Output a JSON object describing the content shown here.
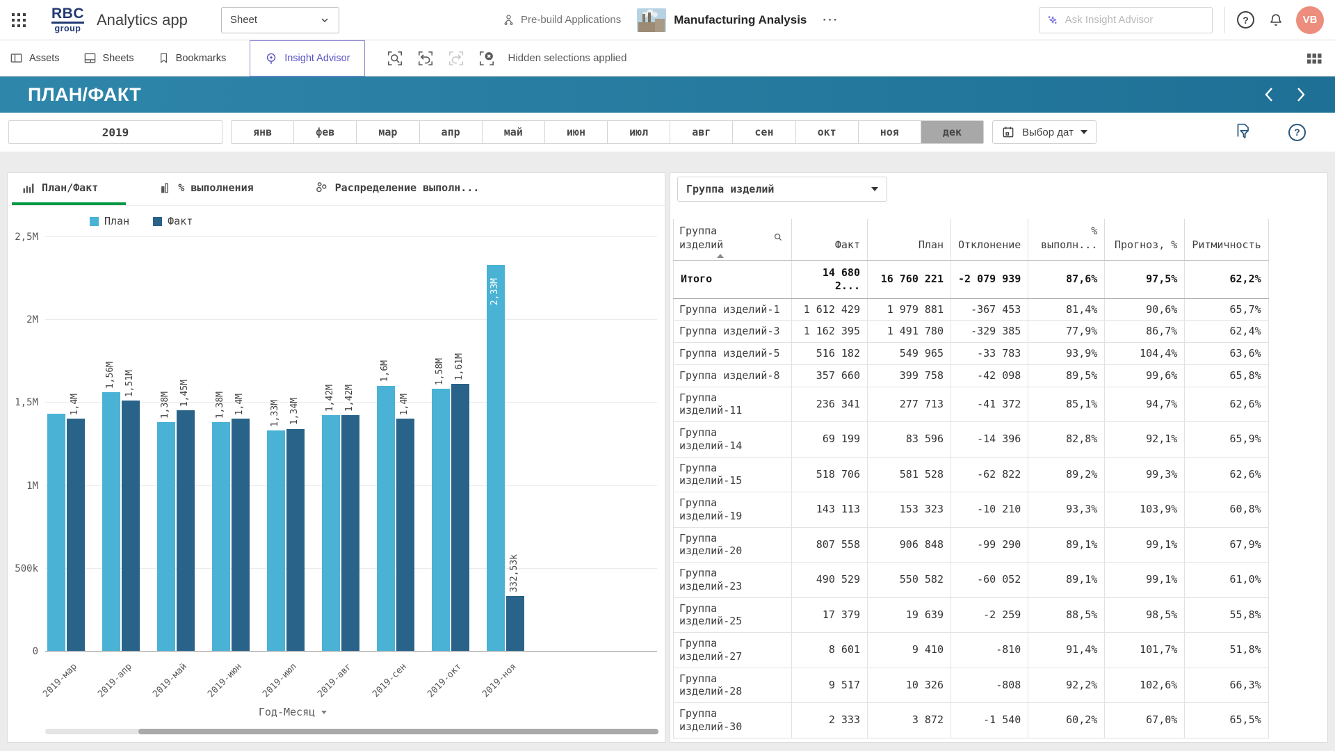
{
  "colors": {
    "plan": "#4ab2d4",
    "fact": "#2a6389",
    "negative": "#e8293d",
    "positive": "#0ea55c",
    "forecast": "#4f52c8",
    "accent_green": "#009845",
    "header_gradient_start": "#2e86aa",
    "header_gradient_end": "#1f7096",
    "avatar_bg": "#ec8d7d"
  },
  "topbar": {
    "logo_line1": "RBC",
    "logo_line2": "group",
    "app_title": "Analytics app",
    "sheet_select": "Sheet",
    "prebuild_label": "Pre-build Applications",
    "app_name": "Manufacturing Analysis",
    "ellipsis": "···",
    "search_placeholder": "Ask Insight Advisor",
    "avatar_initials": "VB"
  },
  "toolbar": {
    "assets": "Assets",
    "sheets": "Sheets",
    "bookmarks": "Bookmarks",
    "insight_advisor": "Insight Advisor",
    "hidden_selections": "Hidden selections applied"
  },
  "sheet_header": {
    "title": "ПЛАН/ФАКТ"
  },
  "filters": {
    "year": "2019",
    "months": [
      "янв",
      "фев",
      "мар",
      "апр",
      "май",
      "июн",
      "июл",
      "авг",
      "сен",
      "окт",
      "ноя",
      "дек"
    ],
    "selected_month": "дек",
    "date_picker": "Выбор дат"
  },
  "chart_card": {
    "tabs": [
      {
        "label": "План/Факт",
        "active": true
      },
      {
        "label": "% выполнения",
        "active": false
      },
      {
        "label": "Распределение выполн...",
        "active": false
      }
    ],
    "axis_title": "Год-Месяц"
  },
  "chart_data": {
    "type": "bar",
    "title": "План/Факт",
    "unit": "millions",
    "categories": [
      "2019-мар",
      "2019-апр",
      "2019-май",
      "2019-июн",
      "2019-июл",
      "2019-авг",
      "2019-сен",
      "2019-окт",
      "2019-ноя"
    ],
    "series": [
      {
        "name": "План",
        "color": "#4ab2d4",
        "values": [
          1.43,
          1.56,
          1.38,
          1.38,
          1.33,
          1.42,
          1.6,
          1.58,
          2.33
        ],
        "labels": [
          "",
          "1,56M",
          "1,38M",
          "1,38M",
          "1,33M",
          "1,42M",
          "1,6M",
          "1,58M",
          "2,33M"
        ]
      },
      {
        "name": "Факт",
        "color": "#2a6389",
        "values": [
          1.4,
          1.51,
          1.45,
          1.4,
          1.34,
          1.42,
          1.4,
          1.61,
          0.33253
        ],
        "labels": [
          "1,4M",
          "1,51M",
          "1,45M",
          "1,4M",
          "1,34M",
          "1,42M",
          "1,4M",
          "1,61M",
          "332,53k"
        ]
      }
    ],
    "ylim": [
      0,
      2.5
    ],
    "ytick_values": [
      0,
      0.5,
      1,
      1.5,
      2,
      2.5
    ],
    "ytick_labels": [
      "0",
      "500k",
      "1M",
      "1,5M",
      "2M",
      "2,5M"
    ],
    "xlabel": "Год-Месяц",
    "grid": true,
    "legend_position": "top-left"
  },
  "table_card": {
    "dimension_select": "Группа изделий",
    "columns": [
      "Группа\nизделий",
      "Факт",
      "План",
      "Отклонение",
      "%\nвыполн...",
      "Прогноз, %",
      "Ритмичность"
    ],
    "total": {
      "name": "Итого",
      "fact": "14 680 2...",
      "plan": "16 760 221",
      "deviation": "-2 079 939",
      "pct": "87,6%",
      "forecast": "97,5%",
      "rhythm": "62,2%"
    },
    "rows": [
      {
        "name": "Группа изделий-1",
        "fact": "1 612 429",
        "plan": "1 979 881",
        "deviation": "-367 453",
        "pct": "81,4%",
        "forecast": "90,6%",
        "rhythm": "65,7%"
      },
      {
        "name": "Группа изделий-3",
        "fact": "1 162 395",
        "plan": "1 491 780",
        "deviation": "-329 385",
        "pct": "77,9%",
        "forecast": "86,7%",
        "rhythm": "62,4%"
      },
      {
        "name": "Группа изделий-5",
        "fact": "516 182",
        "plan": "549 965",
        "deviation": "-33 783",
        "pct": "93,9%",
        "forecast": "104,4%",
        "rhythm": "63,6%"
      },
      {
        "name": "Группа изделий-8",
        "fact": "357 660",
        "plan": "399 758",
        "deviation": "-42 098",
        "pct": "89,5%",
        "forecast": "99,6%",
        "rhythm": "65,8%"
      },
      {
        "name": "Группа изделий-11",
        "fact": "236 341",
        "plan": "277 713",
        "deviation": "-41 372",
        "pct": "85,1%",
        "forecast": "94,7%",
        "rhythm": "62,6%"
      },
      {
        "name": "Группа изделий-14",
        "fact": "69 199",
        "plan": "83 596",
        "deviation": "-14 396",
        "pct": "82,8%",
        "forecast": "92,1%",
        "rhythm": "65,9%"
      },
      {
        "name": "Группа изделий-15",
        "fact": "518 706",
        "plan": "581 528",
        "deviation": "-62 822",
        "pct": "89,2%",
        "forecast": "99,3%",
        "rhythm": "62,6%"
      },
      {
        "name": "Группа изделий-19",
        "fact": "143 113",
        "plan": "153 323",
        "deviation": "-10 210",
        "pct": "93,3%",
        "forecast": "103,9%",
        "rhythm": "60,8%"
      },
      {
        "name": "Группа изделий-20",
        "fact": "807 558",
        "plan": "906 848",
        "deviation": "-99 290",
        "pct": "89,1%",
        "forecast": "99,1%",
        "rhythm": "67,9%"
      },
      {
        "name": "Группа изделий-23",
        "fact": "490 529",
        "plan": "550 582",
        "deviation": "-60 052",
        "pct": "89,1%",
        "forecast": "99,1%",
        "rhythm": "61,0%"
      },
      {
        "name": "Группа изделий-25",
        "fact": "17 379",
        "plan": "19 639",
        "deviation": "-2 259",
        "pct": "88,5%",
        "forecast": "98,5%",
        "rhythm": "55,8%"
      },
      {
        "name": "Группа изделий-27",
        "fact": "8 601",
        "plan": "9 410",
        "deviation": "-810",
        "pct": "91,4%",
        "forecast": "101,7%",
        "rhythm": "51,8%"
      },
      {
        "name": "Группа изделий-28",
        "fact": "9 517",
        "plan": "10 326",
        "deviation": "-808",
        "pct": "92,2%",
        "forecast": "102,6%",
        "rhythm": "66,3%"
      },
      {
        "name": "Группа изделий-30",
        "fact": "2 333",
        "plan": "3 872",
        "deviation": "-1 540",
        "pct": "60,2%",
        "forecast": "67,0%",
        "rhythm": "65,5%"
      }
    ]
  }
}
